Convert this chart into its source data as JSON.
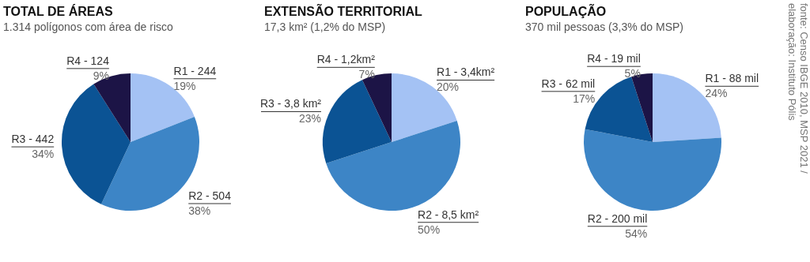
{
  "chart_data": [
    {
      "type": "pie",
      "title": "TOTAL DE ÁREAS",
      "subtitle": "1.314 polígonos com área de risco",
      "categories": [
        "R1 - 244",
        "R2 - 504",
        "R3 - 442",
        "R4 - 124"
      ],
      "values": [
        19,
        38,
        34,
        9
      ],
      "value_labels": [
        "19%",
        "38%",
        "34%",
        "9%"
      ],
      "colors": [
        "#a4c2f4",
        "#3d85c6",
        "#0b5394",
        "#1c1446"
      ]
    },
    {
      "type": "pie",
      "title": "EXTENSÃO TERRITORIAL",
      "subtitle": "17,3 km² (1,2% do MSP)",
      "categories": [
        "R1 - 3,4km²",
        "R2 - 8,5 km²",
        "R3 - 3,8 km²",
        "R4 - 1,2km²"
      ],
      "values": [
        20,
        50,
        23,
        7
      ],
      "value_labels": [
        "20%",
        "50%",
        "23%",
        "7%"
      ],
      "colors": [
        "#a4c2f4",
        "#3d85c6",
        "#0b5394",
        "#1c1446"
      ]
    },
    {
      "type": "pie",
      "title": "POPULAÇÃO",
      "subtitle": "370 mil pessoas (3,3% do MSP)",
      "categories": [
        "R1 - 88 mil",
        "R2 - 200 mil",
        "R3 - 62 mil",
        "R4 - 19 mil"
      ],
      "values": [
        24,
        54,
        17,
        5
      ],
      "value_labels": [
        "24%",
        "54%",
        "17%",
        "5%"
      ],
      "colors": [
        "#a4c2f4",
        "#3d85c6",
        "#0b5394",
        "#1c1446"
      ],
      "annotations": [
        "fonte: Censo IBGE 2010, MSP 2021 /",
        "elaboração: Instituto Pólis"
      ]
    }
  ]
}
